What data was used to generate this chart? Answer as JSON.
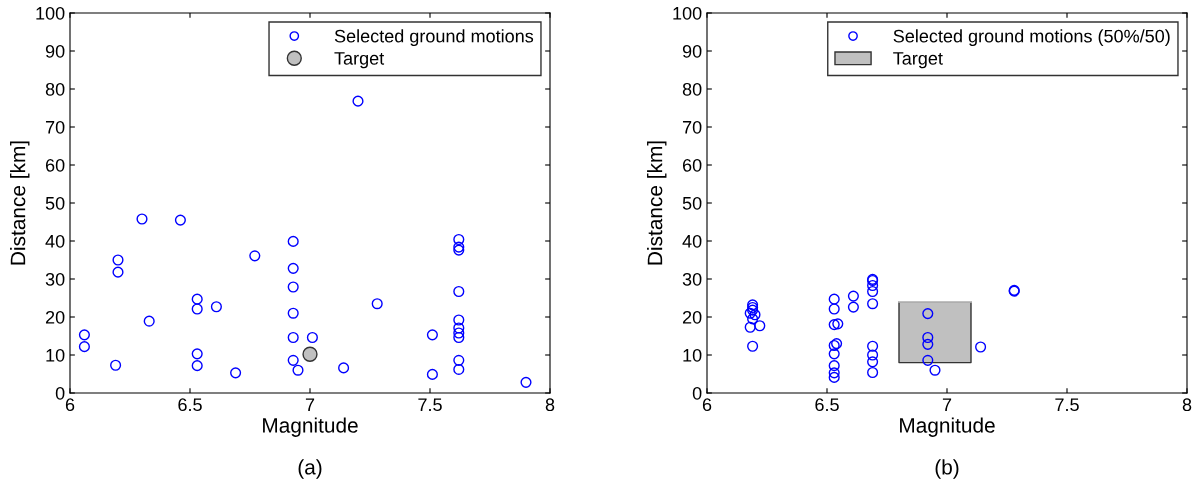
{
  "chart_data": [
    {
      "type": "scatter",
      "xlabel": "Magnitude",
      "ylabel": "Distance [km]",
      "annotations": [
        "(a)"
      ],
      "xlim": [
        6,
        8
      ],
      "ylim": [
        0,
        100
      ],
      "xticks": [
        6,
        6.5,
        7,
        7.5,
        8
      ],
      "yticks": [
        0,
        10,
        20,
        30,
        40,
        50,
        60,
        70,
        80,
        90,
        100
      ],
      "grid": false,
      "legend": "top right",
      "marker": "circle",
      "series": [
        {
          "name": "Selected ground motions",
          "color": "#0000ff",
          "x": [
            6.06,
            6.06,
            6.19,
            6.2,
            6.2,
            6.3,
            6.33,
            6.46,
            6.53,
            6.53,
            6.53,
            6.53,
            6.61,
            6.69,
            6.77,
            6.93,
            6.93,
            6.93,
            6.93,
            6.93,
            6.93,
            6.95,
            7.01,
            7.14,
            7.2,
            7.28,
            7.51,
            7.51,
            7.62,
            7.62,
            7.62,
            7.62,
            7.62,
            7.62,
            7.62,
            7.62,
            7.62,
            7.62,
            7.9
          ],
          "values": [
            15.3,
            12.2,
            7.3,
            35,
            31.8,
            45.8,
            18.9,
            45.5,
            24.7,
            22.1,
            10.3,
            7.2,
            22.7,
            5.3,
            36.1,
            39.9,
            32.8,
            27.9,
            21,
            14.6,
            8.6,
            6,
            14.6,
            6.6,
            76.8,
            23.5,
            15.3,
            4.9,
            40.4,
            38.4,
            37.6,
            26.7,
            19.2,
            17.1,
            15.8,
            14.6,
            8.6,
            6.2,
            2.8
          ]
        },
        {
          "name": "Target",
          "color": "#c0c0c0",
          "x": [
            7.0
          ],
          "values": [
            10.2
          ]
        }
      ]
    },
    {
      "type": "scatter",
      "xlabel": "Magnitude",
      "ylabel": "Distance [km]",
      "annotations": [
        "(b)"
      ],
      "xlim": [
        6,
        8
      ],
      "ylim": [
        0,
        100
      ],
      "xticks": [
        6,
        6.5,
        7,
        7.5,
        8
      ],
      "yticks": [
        0,
        10,
        20,
        30,
        40,
        50,
        60,
        70,
        80,
        90,
        100
      ],
      "grid": false,
      "legend": "top right",
      "marker": "circle",
      "series": [
        {
          "name": "Selected ground motions (50%/50)",
          "color": "#0000ff",
          "x": [
            6.19,
            6.19,
            6.19,
            6.18,
            6.2,
            6.19,
            6.18,
            6.22,
            6.19,
            6.53,
            6.53,
            6.53,
            6.545,
            6.54,
            6.53,
            6.53,
            6.53,
            6.53,
            6.53,
            6.61,
            6.61,
            6.69,
            6.69,
            6.69,
            6.69,
            6.69,
            6.69,
            6.69,
            6.69,
            6.69,
            6.92,
            6.92,
            6.92,
            6.92,
            6.95,
            7.14,
            7.28,
            7.28
          ],
          "values": [
            23.2,
            22.5,
            21.8,
            21.0,
            20.6,
            19.5,
            17.3,
            17.7,
            12.3,
            24.7,
            22.1,
            18.0,
            18.2,
            13.0,
            12.5,
            10.3,
            7.2,
            5.3,
            4.1,
            25.5,
            22.6,
            29.9,
            29.6,
            28.3,
            26.7,
            23.5,
            12.3,
            10.0,
            8.2,
            5.4,
            20.9,
            14.6,
            12.8,
            8.6,
            6.0,
            12.1,
            26.8,
            27.0
          ]
        },
        {
          "name": "Target",
          "type": "line",
          "marker": "none",
          "color": "#c0c0c0",
          "x": [
            6.8,
            7.1
          ],
          "values": [
            24,
            24
          ],
          "lower": [
            8,
            8
          ],
          "upper": [
            24,
            24
          ]
        }
      ]
    }
  ]
}
